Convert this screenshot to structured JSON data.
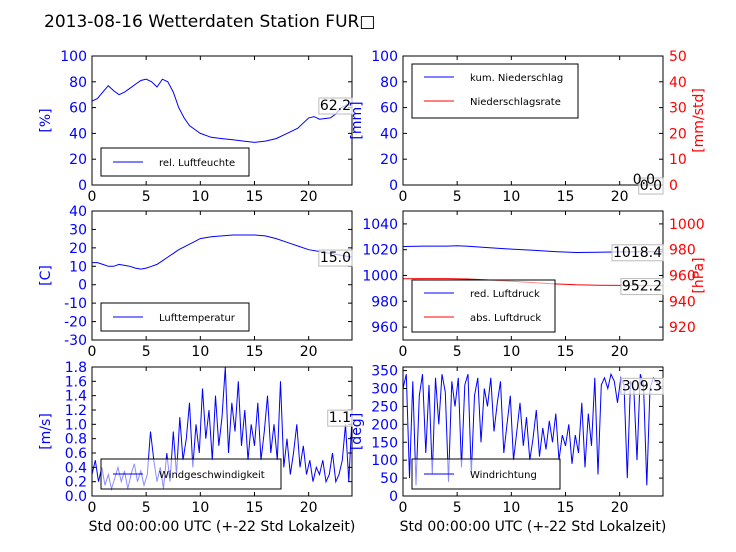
{
  "title": "2013-08-16 Wetterdaten Station FUR□",
  "xlabel": "Std 00:00:00 UTC (+-22 Std Lokalzeit)",
  "colors": {
    "left": "#0000ff",
    "right": "#ff0000"
  },
  "chart_data": [
    {
      "id": "humidity",
      "type": "line",
      "xlim": [
        0,
        24
      ],
      "xticks": [
        0,
        5,
        10,
        15,
        20
      ],
      "ylim": [
        0,
        100
      ],
      "yticks": [
        0,
        20,
        40,
        60,
        80,
        100
      ],
      "ylabel": "[%]",
      "last_value": "62.2",
      "series": [
        {
          "name": "rel. Luftfeuchte",
          "color": "#0000ff",
          "x": [
            0,
            0.5,
            1,
            1.5,
            2,
            2.5,
            3,
            3.5,
            4,
            4.5,
            5,
            5.5,
            6,
            6.5,
            7,
            7.5,
            8,
            8.5,
            9,
            9.5,
            10,
            11,
            12,
            13,
            14,
            15,
            16,
            17,
            18,
            19,
            20,
            20.5,
            21,
            22,
            22.5,
            23,
            23.5,
            24
          ],
          "y": [
            65,
            67,
            72,
            77,
            73,
            70,
            72,
            75,
            78,
            81,
            82,
            80,
            76,
            82,
            80,
            72,
            60,
            52,
            46,
            43,
            40,
            37,
            36,
            35,
            34,
            33,
            34,
            36,
            40,
            44,
            52,
            53,
            51,
            52,
            55,
            60,
            62,
            62
          ]
        }
      ]
    },
    {
      "id": "precip",
      "type": "line",
      "xlim": [
        0,
        24
      ],
      "xticks": [
        0,
        5,
        10,
        15,
        20
      ],
      "ylim": [
        0,
        100
      ],
      "yticks": [
        0,
        20,
        40,
        60,
        80,
        100
      ],
      "ylabel": "[mm]",
      "y2lim": [
        0,
        50
      ],
      "y2ticks": [
        0,
        10,
        20,
        30,
        40,
        50
      ],
      "y2label": "[mm/std]",
      "last_value": "0.0",
      "last_value2": "0.0",
      "series": [
        {
          "name": "kum. Niederschlag",
          "color": "#0000ff",
          "axis": "left",
          "x": [
            0,
            24
          ],
          "y": [
            0,
            0
          ]
        },
        {
          "name": "Niederschlagsrate",
          "color": "#ff0000",
          "axis": "right",
          "x": [
            0,
            24
          ],
          "y": [
            0,
            0
          ]
        }
      ]
    },
    {
      "id": "temperature",
      "type": "line",
      "xlim": [
        0,
        24
      ],
      "xticks": [
        0,
        5,
        10,
        15,
        20
      ],
      "ylim": [
        -30,
        40
      ],
      "yticks": [
        -30,
        -20,
        -10,
        0,
        10,
        20,
        30,
        40
      ],
      "ylabel": "[C]",
      "last_value": "15.0",
      "series": [
        {
          "name": "Lufttemperatur",
          "color": "#0000ff",
          "x": [
            0,
            0.5,
            1,
            1.5,
            2,
            2.5,
            3,
            3.5,
            4,
            4.5,
            5,
            5.5,
            6,
            6.5,
            7,
            7.5,
            8,
            9,
            10,
            11,
            12,
            13,
            14,
            15,
            16,
            17,
            18,
            19,
            20,
            21,
            22,
            23,
            24
          ],
          "y": [
            12,
            12,
            11,
            10,
            10,
            11,
            10.5,
            10,
            9,
            8.5,
            9,
            10,
            11,
            13,
            15,
            17,
            19,
            22,
            25,
            26,
            26.5,
            27,
            27,
            27,
            26.5,
            25,
            23,
            21,
            19,
            18,
            17,
            16,
            15
          ]
        }
      ]
    },
    {
      "id": "pressure",
      "type": "line",
      "xlim": [
        0,
        24
      ],
      "xticks": [
        0,
        5,
        10,
        15,
        20
      ],
      "ylim": [
        950,
        1050
      ],
      "yticks": [
        960,
        980,
        1000,
        1020,
        1040
      ],
      "y2lim": [
        910,
        1010
      ],
      "y2ticks": [
        920,
        940,
        960,
        980,
        1000
      ],
      "y2label": "[hPa]",
      "last_value": "1018.4",
      "last_value2": "952.2",
      "series": [
        {
          "name": "red. Luftdruck",
          "color": "#0000ff",
          "axis": "left",
          "x": [
            0,
            2,
            4,
            5,
            6,
            8,
            10,
            12,
            14,
            16,
            18,
            20,
            22,
            24
          ],
          "y": [
            1022.5,
            1022.8,
            1022.8,
            1023,
            1022.6,
            1021.5,
            1020.5,
            1019.5,
            1018.5,
            1017.8,
            1018,
            1018.3,
            1018.4,
            1018.4
          ]
        },
        {
          "name": "abs. Luftdruck",
          "color": "#ff0000",
          "axis": "right",
          "x": [
            0,
            2,
            4,
            6,
            8,
            10,
            12,
            14,
            16,
            18,
            20,
            22,
            24
          ],
          "y": [
            957.5,
            957.6,
            957.6,
            957.3,
            956.5,
            955.5,
            954.5,
            953.5,
            952.8,
            952.5,
            952.3,
            952.2,
            952.2
          ]
        }
      ]
    },
    {
      "id": "windspeed",
      "type": "line",
      "xlim": [
        0,
        24
      ],
      "xticks": [
        0,
        5,
        10,
        15,
        20
      ],
      "ylim": [
        0,
        1.8
      ],
      "yticks": [
        0.0,
        0.2,
        0.4,
        0.6,
        0.8,
        1.0,
        1.2,
        1.4,
        1.6,
        1.8
      ],
      "ylabel": "[m/s]",
      "last_value": "1.1",
      "series": [
        {
          "name": "Windgeschwindigkeit",
          "color": "#0000ff",
          "x": [
            0,
            0.3,
            0.6,
            0.9,
            1.2,
            1.5,
            1.8,
            2.1,
            2.4,
            2.7,
            3,
            3.3,
            3.6,
            3.9,
            4.2,
            4.5,
            4.8,
            5.1,
            5.4,
            5.7,
            6,
            6.3,
            6.6,
            6.9,
            7.2,
            7.5,
            7.8,
            8.1,
            8.4,
            8.7,
            9,
            9.3,
            9.6,
            9.9,
            10.2,
            10.5,
            10.8,
            11.1,
            11.4,
            11.7,
            12,
            12.3,
            12.6,
            12.9,
            13.2,
            13.5,
            13.8,
            14.1,
            14.4,
            14.7,
            15,
            15.3,
            15.6,
            15.9,
            16.2,
            16.5,
            16.8,
            17.1,
            17.4,
            17.7,
            18,
            18.3,
            18.6,
            18.9,
            19.2,
            19.5,
            19.8,
            20.1,
            20.4,
            20.7,
            21,
            21.3,
            21.6,
            21.9,
            22.2,
            22.5,
            22.8,
            23.1,
            23.4,
            23.7,
            24
          ],
          "y": [
            0.3,
            0.5,
            0.2,
            0.4,
            0.15,
            0.3,
            0.1,
            0.25,
            0.4,
            0.2,
            0.35,
            0.1,
            0.3,
            0.45,
            0.2,
            0.35,
            0.15,
            0.3,
            0.9,
            0.5,
            0.2,
            0.4,
            0.1,
            0.6,
            0.2,
            0.9,
            0.3,
            1.1,
            0.5,
            0.8,
            1.3,
            0.4,
            1.0,
            0.6,
            1.5,
            0.8,
            1.2,
            0.5,
            1.4,
            0.7,
            1.1,
            1.8,
            0.6,
            1.3,
            0.9,
            1.6,
            0.7,
            1.2,
            0.5,
            1.0,
            0.7,
            1.3,
            0.5,
            0.9,
            1.4,
            0.6,
            1.0,
            0.5,
            1.6,
            0.4,
            0.8,
            0.3,
            0.6,
            1.0,
            0.4,
            0.7,
            0.3,
            0.5,
            0.2,
            0.4,
            0.3,
            0.5,
            0.2,
            0.3,
            0.6,
            0.2,
            0.3,
            0.5,
            1.0,
            0.2,
            1.1
          ]
        }
      ]
    },
    {
      "id": "winddir",
      "type": "line",
      "xlim": [
        0,
        24
      ],
      "xticks": [
        0,
        5,
        10,
        15,
        20
      ],
      "ylim": [
        0,
        360
      ],
      "yticks": [
        0,
        50,
        100,
        150,
        200,
        250,
        300,
        350
      ],
      "ylabel": "[deg]",
      "last_value": "309.3",
      "series": [
        {
          "name": "Windrichtung",
          "color": "#0000ff",
          "x": [
            0,
            0.3,
            0.6,
            0.9,
            1.2,
            1.5,
            1.8,
            2.1,
            2.4,
            2.7,
            3,
            3.3,
            3.6,
            3.9,
            4.2,
            4.5,
            4.8,
            5.1,
            5.4,
            5.7,
            6,
            6.3,
            6.6,
            6.9,
            7.2,
            7.5,
            7.8,
            8.1,
            8.4,
            8.7,
            9,
            9.3,
            9.6,
            9.9,
            10.2,
            10.5,
            10.8,
            11.1,
            11.4,
            11.7,
            12,
            12.3,
            12.6,
            12.9,
            13.2,
            13.5,
            13.8,
            14.1,
            14.4,
            14.7,
            15,
            15.3,
            15.6,
            15.9,
            16.2,
            16.5,
            16.8,
            17.1,
            17.4,
            17.7,
            18,
            18.3,
            18.6,
            18.9,
            19.2,
            19.5,
            19.8,
            20.1,
            20.4,
            20.7,
            21,
            21.3,
            21.6,
            21.9,
            22.2,
            22.5,
            22.8,
            23.1,
            23.4,
            23.7,
            24
          ],
          "y": [
            300,
            340,
            50,
            320,
            30,
            280,
            340,
            120,
            310,
            60,
            330,
            200,
            340,
            290,
            40,
            320,
            250,
            330,
            80,
            310,
            340,
            60,
            280,
            330,
            150,
            300,
            250,
            330,
            180,
            260,
            320,
            120,
            200,
            280,
            100,
            180,
            260,
            140,
            220,
            100,
            160,
            240,
            110,
            190,
            130,
            210,
            150,
            230,
            100,
            170,
            140,
            200,
            90,
            170,
            120,
            260,
            80,
            230,
            140,
            330,
            60,
            310,
            330,
            300,
            340,
            320,
            260,
            330,
            310,
            50,
            320,
            300,
            100,
            340,
            310,
            30,
            300,
            330,
            320,
            300,
            309
          ]
        }
      ]
    }
  ]
}
